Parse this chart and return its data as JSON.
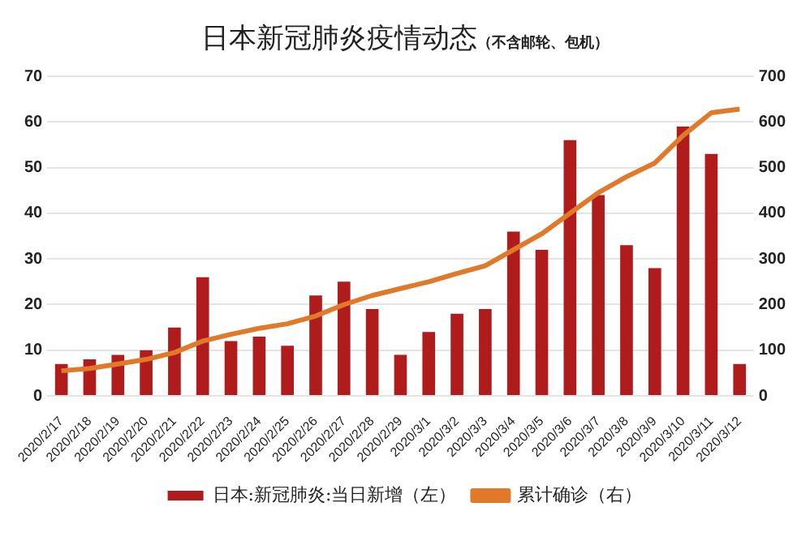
{
  "chart_data": {
    "type": "bar",
    "title": "日本新冠肺炎疫情动态",
    "subtitle": "（不含邮轮、包机）",
    "categories": [
      "2020/2/17",
      "2020/2/18",
      "2020/2/19",
      "2020/2/20",
      "2020/2/21",
      "2020/2/22",
      "2020/2/23",
      "2020/2/24",
      "2020/2/25",
      "2020/2/26",
      "2020/2/27",
      "2020/2/28",
      "2020/2/29",
      "2020/3/1",
      "2020/3/2",
      "2020/3/3",
      "2020/3/4",
      "2020/3/5",
      "2020/3/6",
      "2020/3/7",
      "2020/3/8",
      "2020/3/9",
      "2020/3/10",
      "2020/3/11",
      "2020/3/12"
    ],
    "series": [
      {
        "name": "日本:新冠肺炎:当日新增（左）",
        "color": "#b01c1c",
        "values": [
          7,
          8,
          9,
          10,
          15,
          26,
          12,
          13,
          11,
          22,
          25,
          19,
          9,
          14,
          18,
          19,
          36,
          32,
          56,
          44,
          33,
          28,
          59,
          53,
          7
        ]
      },
      {
        "name": "累计确诊（右）",
        "type": "line",
        "axis": "y2",
        "color": "#e07a2a",
        "values": [
          55,
          60,
          70,
          80,
          95,
          120,
          135,
          148,
          158,
          175,
          200,
          220,
          235,
          250,
          268,
          285,
          320,
          355,
          400,
          445,
          480,
          510,
          570,
          620,
          628
        ]
      }
    ],
    "ylim": [
      0,
      70
    ],
    "yticks": [
      0,
      10,
      20,
      30,
      40,
      50,
      60,
      70
    ],
    "y2lim": [
      0,
      700
    ],
    "y2ticks": [
      0,
      100,
      200,
      300,
      400,
      500,
      600,
      700
    ],
    "grid": "y",
    "legend": "bottom",
    "marker": "none",
    "line_style": "solid"
  }
}
